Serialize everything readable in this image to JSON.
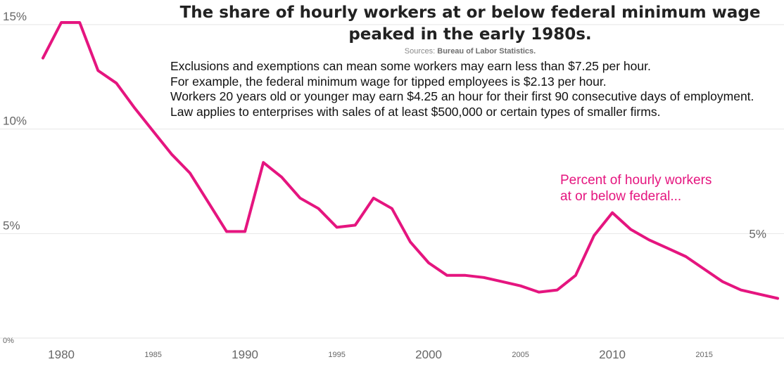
{
  "title_line1": "The share of hourly workers at or below federal minimum wage",
  "title_line2": "peaked in the early 1980s.",
  "sources_label": "Sources:",
  "sources_value": "Bureau of Labor Statistics.",
  "notes": [
    "Exclusions and exemptions can mean some workers may earn less than $7.25 per hour.",
    "For example, the federal minimum wage for tipped employees is $2.13 per hour.",
    "Workers 20 years old or younger may earn $4.25 an hour for their first 90 consecutive days of employment.",
    "Law applies to  enterprises with sales of at least $500,000 or certain types of smaller firms."
  ],
  "colors": {
    "line": "#e5157f",
    "grid": "#e6e6e6",
    "axis_text": "#666666"
  },
  "chart_data": {
    "type": "line",
    "title": "The share of hourly workers at or below federal minimum wage peaked in the early 1980s.",
    "xlabel": "",
    "ylabel": "",
    "x_ticks_major": [
      1980,
      1990,
      2000,
      2010
    ],
    "x_ticks_minor": [
      1985,
      1995,
      2005,
      2015
    ],
    "x_tick_labels": {
      "1980": "1980",
      "1985": "1985",
      "1990": "1990",
      "1995": "1995",
      "2000": "2000",
      "2005": "2005",
      "2010": "2010",
      "2015": "2015"
    },
    "y_ticks": [
      0,
      5,
      10,
      15
    ],
    "y_tick_labels": [
      "0%",
      "5%",
      "10%",
      "15%"
    ],
    "right_label": "5%",
    "xlim": [
      1979,
      2019
    ],
    "ylim": [
      0,
      15
    ],
    "grid": true,
    "series": [
      {
        "name": "Percent of hourly workers at or below federal...",
        "x": [
          1979,
          1980,
          1981,
          1982,
          1983,
          1984,
          1985,
          1986,
          1987,
          1988,
          1989,
          1990,
          1991,
          1992,
          1993,
          1994,
          1995,
          1996,
          1997,
          1998,
          1999,
          2000,
          2001,
          2002,
          2003,
          2004,
          2005,
          2006,
          2007,
          2008,
          2009,
          2010,
          2011,
          2012,
          2013,
          2014,
          2015,
          2016,
          2017,
          2018,
          2019
        ],
        "values": [
          13.4,
          15.1,
          15.1,
          12.8,
          12.2,
          11.0,
          9.9,
          8.8,
          7.9,
          6.5,
          5.1,
          5.1,
          8.4,
          7.7,
          6.7,
          6.2,
          5.3,
          5.4,
          6.7,
          6.2,
          4.6,
          3.6,
          3.0,
          3.0,
          2.9,
          2.7,
          2.5,
          2.2,
          2.3,
          3.0,
          4.9,
          6.0,
          5.2,
          4.7,
          4.3,
          3.9,
          3.3,
          2.7,
          2.3,
          2.1,
          1.9
        ]
      }
    ]
  }
}
